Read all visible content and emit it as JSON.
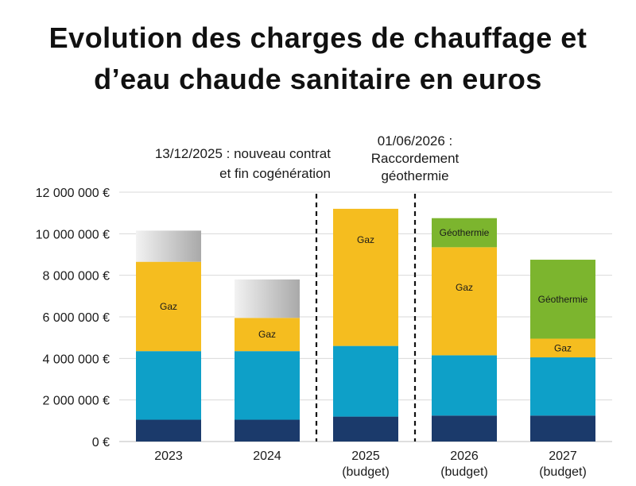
{
  "title_lines": [
    "Evolution des charges de chauffage et",
    "d’eau chaude sanitaire en euros"
  ],
  "chart_data": {
    "type": "bar",
    "stacked": true,
    "title": "Evolution des charges de chauffage et d’eau chaude sanitaire en euros",
    "categories": [
      {
        "line1": "2023",
        "line2": ""
      },
      {
        "line1": "2024",
        "line2": ""
      },
      {
        "line1": "2025",
        "line2": "(budget)"
      },
      {
        "line1": "2026",
        "line2": "(budget)"
      },
      {
        "line1": "2027",
        "line2": "(budget)"
      }
    ],
    "ylim": [
      0,
      12000000
    ],
    "y_ticks": [
      {
        "value": 0,
        "label": "0 €"
      },
      {
        "value": 2000000,
        "label": "2 000 000 €"
      },
      {
        "value": 4000000,
        "label": "4 000 000 €"
      },
      {
        "value": 6000000,
        "label": "6 000 000 €"
      },
      {
        "value": 8000000,
        "label": "8 000 000 €"
      },
      {
        "value": 10000000,
        "label": "10 000 000 €"
      },
      {
        "value": 12000000,
        "label": "12 000 000 €"
      }
    ],
    "grid": true,
    "series": [
      {
        "name": "base",
        "label": "",
        "color": "#1b3a6b",
        "values": [
          1050000,
          1050000,
          1200000,
          1250000,
          1250000
        ]
      },
      {
        "name": "blue",
        "label": "",
        "color": "#0ea0c8",
        "values": [
          3300000,
          3300000,
          3400000,
          2900000,
          2800000
        ]
      },
      {
        "name": "gaz",
        "label": "Gaz",
        "color": "#f5bd1f",
        "values": [
          4300000,
          1600000,
          6600000,
          5200000,
          900000
        ]
      },
      {
        "name": "geothermie",
        "label": "Géothermie",
        "color": "#7cb52e",
        "values": [
          0,
          0,
          0,
          1400000,
          3800000
        ]
      },
      {
        "name": "grey",
        "label": "",
        "color": "#cfcfcf",
        "values": [
          1500000,
          1850000,
          0,
          0,
          0
        ]
      }
    ],
    "annotations": [
      {
        "between": [
          1,
          2
        ],
        "lines": [
          "13/12/2025 : nouveau contrat",
          "et fin cogénération"
        ]
      },
      {
        "between": [
          2,
          3
        ],
        "lines": [
          "01/06/2026 :",
          "Raccordement",
          "géothermie"
        ]
      }
    ]
  }
}
